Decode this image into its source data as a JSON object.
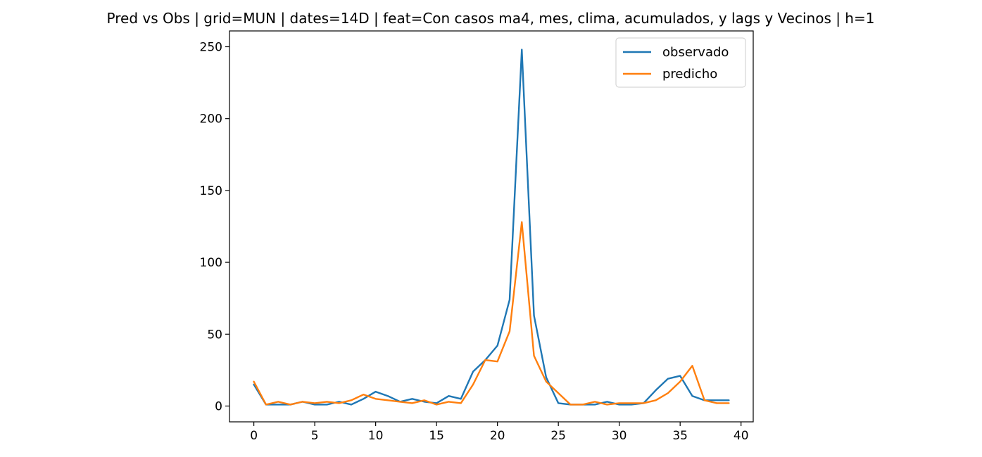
{
  "chart_data": {
    "type": "line",
    "title": "Pred vs Obs | grid=MUN | dates=14D | feat=Con casos ma4, mes, clima, acumulados, y lags y Vecinos | h=1",
    "xlabel": "",
    "ylabel": "",
    "xlim": [
      -2,
      41
    ],
    "ylim": [
      -11,
      261
    ],
    "x_ticks": [
      0,
      5,
      10,
      15,
      20,
      25,
      30,
      35,
      40
    ],
    "y_ticks": [
      0,
      50,
      100,
      150,
      200,
      250
    ],
    "grid": false,
    "legend_position": "top-right",
    "x": [
      0,
      1,
      2,
      3,
      4,
      5,
      6,
      7,
      8,
      9,
      10,
      11,
      12,
      13,
      14,
      15,
      16,
      17,
      18,
      19,
      20,
      21,
      22,
      23,
      24,
      25,
      26,
      27,
      28,
      29,
      30,
      31,
      32,
      33,
      34,
      35,
      36,
      37,
      38,
      39
    ],
    "series": [
      {
        "name": "observado",
        "color": "#1f77b4",
        "values": [
          15,
          1,
          1,
          1,
          3,
          1,
          1,
          3,
          1,
          5,
          10,
          7,
          3,
          5,
          3,
          2,
          7,
          5,
          24,
          32,
          42,
          74,
          248,
          63,
          20,
          2,
          1,
          1,
          1,
          3,
          1,
          1,
          2,
          11,
          19,
          21,
          7,
          4,
          4,
          4
        ]
      },
      {
        "name": "predicho",
        "color": "#ff7f0e",
        "values": [
          17,
          1,
          3,
          1,
          3,
          2,
          3,
          2,
          4,
          8,
          5,
          4,
          3,
          2,
          4,
          1,
          3,
          2,
          15,
          32,
          31,
          52,
          128,
          35,
          17,
          9,
          1,
          1,
          3,
          1,
          2,
          2,
          2,
          4,
          9,
          17,
          28,
          4,
          2,
          2
        ]
      }
    ]
  }
}
